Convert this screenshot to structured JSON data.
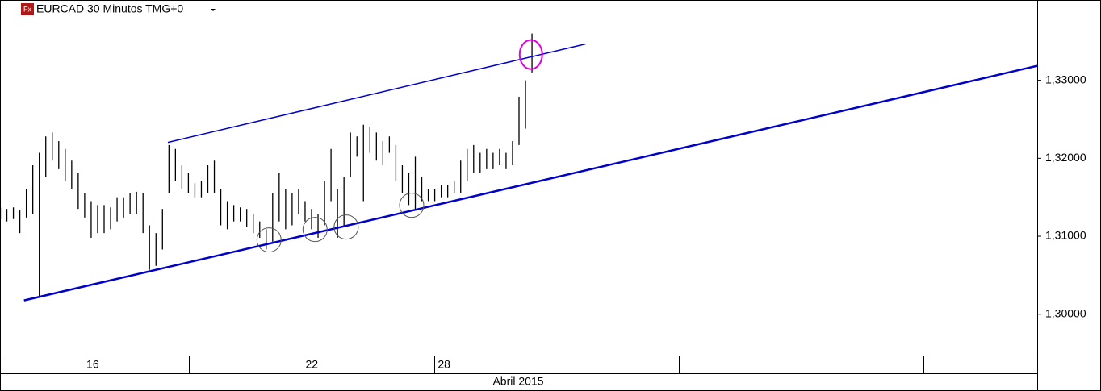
{
  "chart_data": {
    "type": "hilo",
    "title": "EURCAD 30 Minutos TMG+0",
    "icon": "Fx",
    "color": "#000000",
    "high": [
      1.3137,
      1.3135,
      1.3137,
      1.3133,
      1.316,
      1.3191,
      1.3207,
      1.3228,
      1.3233,
      1.3222,
      1.3212,
      1.3197,
      1.3181,
      1.3155,
      1.3145,
      1.314,
      1.314,
      1.3137,
      1.315,
      1.315,
      1.3155,
      1.3157,
      1.3155,
      1.3114,
      1.3104,
      1.3135,
      1.3217,
      1.3212,
      1.3191,
      1.3181,
      1.3168,
      1.3171,
      1.3191,
      1.3197,
      1.316,
      1.3145,
      1.314,
      1.3137,
      1.3135,
      1.3129,
      1.3119,
      1.3109,
      1.3155,
      1.3181,
      1.316,
      1.3155,
      1.316,
      1.3145,
      1.3135,
      1.3129,
      1.3171,
      1.3212,
      1.316,
      1.3176,
      1.3233,
      1.3228,
      1.3243,
      1.324,
      1.3233,
      1.3222,
      1.3228,
      1.3217,
      1.3191,
      1.3181,
      1.3202,
      1.3176,
      1.316,
      1.316,
      1.3166,
      1.3166,
      1.3171,
      1.3197,
      1.3212,
      1.3217,
      1.3207,
      1.3212,
      1.3207,
      1.3212,
      1.3207,
      1.3222,
      1.3279,
      1.33,
      1.336
    ],
    "low": [
      1.3122,
      1.3119,
      1.3122,
      1.3104,
      1.3124,
      1.3129,
      1.3023,
      1.3176,
      1.3197,
      1.3186,
      1.3171,
      1.316,
      1.3135,
      1.3124,
      1.3098,
      1.3104,
      1.3104,
      1.3109,
      1.3119,
      1.3124,
      1.3129,
      1.3129,
      1.3104,
      1.3057,
      1.3062,
      1.3083,
      1.3155,
      1.3171,
      1.316,
      1.3155,
      1.315,
      1.315,
      1.3155,
      1.3155,
      1.3114,
      1.3109,
      1.3119,
      1.3119,
      1.3112,
      1.3104,
      1.3098,
      1.3083,
      1.3093,
      1.3119,
      1.3109,
      1.3114,
      1.3129,
      1.3119,
      1.3109,
      1.3098,
      1.3114,
      1.3145,
      1.3098,
      1.3114,
      1.3176,
      1.3202,
      1.3145,
      1.3207,
      1.3197,
      1.3191,
      1.3207,
      1.3171,
      1.3155,
      1.314,
      1.3135,
      1.3145,
      1.3145,
      1.3145,
      1.315,
      1.315,
      1.3155,
      1.3155,
      1.3171,
      1.3181,
      1.3181,
      1.3186,
      1.3186,
      1.3191,
      1.3186,
      1.3191,
      1.3217,
      1.3238,
      1.331
    ],
    "xlim": [
      0,
      160
    ],
    "ylim": [
      1.2947,
      1.3403
    ],
    "yticks": [
      {
        "value": 1.3,
        "label": "1,30000"
      },
      {
        "value": 1.31,
        "label": "1,31000"
      },
      {
        "value": 1.32,
        "label": "1,32000"
      },
      {
        "value": 1.33,
        "label": "1,33000"
      }
    ],
    "xticks": [
      {
        "value": 14.3,
        "label": "16"
      },
      {
        "value": 48.1,
        "label": "22"
      },
      {
        "value": 68.5,
        "label": "28"
      }
    ],
    "xdividers": [
      29.1,
      67.0,
      104.7,
      142.5
    ],
    "xlabel": "Abril 2015",
    "trendlines": [
      {
        "x": [
          3.7,
          160
        ],
        "y": [
          1.30177,
          1.33186
        ],
        "color": "#0000cc",
        "width": 2.5
      },
      {
        "x": [
          25.9,
          90.3
        ],
        "y": [
          1.32204,
          1.33465
        ],
        "color": "#0000cc",
        "width": 1.5
      }
    ],
    "circles": [
      {
        "x": 41.5,
        "y": 1.30953,
        "color": "#555555"
      },
      {
        "x": 48.6,
        "y": 1.31087,
        "color": "#555555"
      },
      {
        "x": 53.4,
        "y": 1.31118,
        "color": "#555555"
      },
      {
        "x": 63.5,
        "y": 1.31397,
        "color": "#555555"
      },
      {
        "x": 81.9,
        "y": 1.33331,
        "color": "#e000e0"
      }
    ]
  }
}
